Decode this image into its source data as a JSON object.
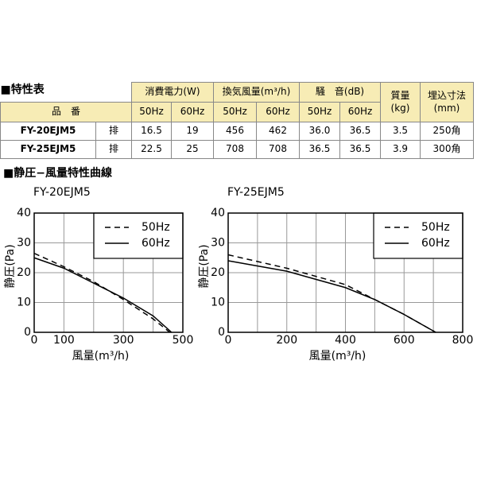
{
  "table": {
    "title": "■特性表",
    "group_headers": [
      "消費電力(W)",
      "換気風量(m³/h)",
      "騒　音(dB)"
    ],
    "tall_headers": [
      "質量\n(kg)",
      "埋込寸法\n(mm)"
    ],
    "model_header": "品　番",
    "sub_headers": [
      "50Hz",
      "60Hz",
      "50Hz",
      "60Hz",
      "50Hz",
      "60Hz"
    ],
    "rows": [
      [
        "FY-20EJM5",
        "排",
        "16.5",
        "19",
        "456",
        "462",
        "36.0",
        "36.5",
        "3.5",
        "250角"
      ],
      [
        "FY-25EJM5",
        "排",
        "22.5",
        "25",
        "708",
        "708",
        "36.5",
        "36.5",
        "3.9",
        "300角"
      ]
    ]
  },
  "section_title": "■静圧−風量特性曲線",
  "chart_data": [
    {
      "type": "line",
      "title": "FY-20EJM5",
      "xlabel": "風量(m³/h)",
      "ylabel": "静圧(Pa)",
      "xlim": [
        0,
        500
      ],
      "ylim": [
        0,
        40
      ],
      "xticks": [
        0,
        100,
        300,
        500
      ],
      "yticks": [
        0,
        10,
        20,
        30,
        40
      ],
      "xgrid": [
        100,
        200,
        300,
        400
      ],
      "grid": true,
      "series": [
        {
          "name": "50Hz",
          "color": "#000000",
          "line_style": "dashed",
          "x": [
            0,
            100,
            200,
            300,
            400,
            456
          ],
          "values": [
            26.5,
            22,
            17,
            11,
            4.5,
            0
          ]
        },
        {
          "name": "60Hz",
          "color": "#000000",
          "line_style": "solid",
          "x": [
            0,
            100,
            200,
            300,
            400,
            462
          ],
          "values": [
            25,
            21.5,
            16.5,
            11.5,
            5.5,
            0
          ]
        }
      ]
    },
    {
      "type": "line",
      "title": "FY-25EJM5",
      "xlabel": "風量(m³/h)",
      "ylabel": "静圧(Pa)",
      "xlim": [
        0,
        800
      ],
      "ylim": [
        0,
        40
      ],
      "xticks": [
        0,
        200,
        400,
        600,
        800
      ],
      "yticks": [
        0,
        10,
        20,
        30,
        40
      ],
      "xgrid": [
        100,
        200,
        300,
        400,
        500,
        600,
        700
      ],
      "grid": true,
      "series": [
        {
          "name": "50Hz",
          "color": "#000000",
          "line_style": "dashed",
          "x": [
            0,
            200,
            400,
            500,
            600,
            708
          ],
          "values": [
            26,
            21.5,
            16,
            11,
            6,
            0
          ]
        },
        {
          "name": "60Hz",
          "color": "#000000",
          "line_style": "solid",
          "x": [
            0,
            200,
            400,
            500,
            600,
            708
          ],
          "values": [
            24,
            20.5,
            15,
            11,
            6,
            0
          ]
        }
      ]
    }
  ]
}
